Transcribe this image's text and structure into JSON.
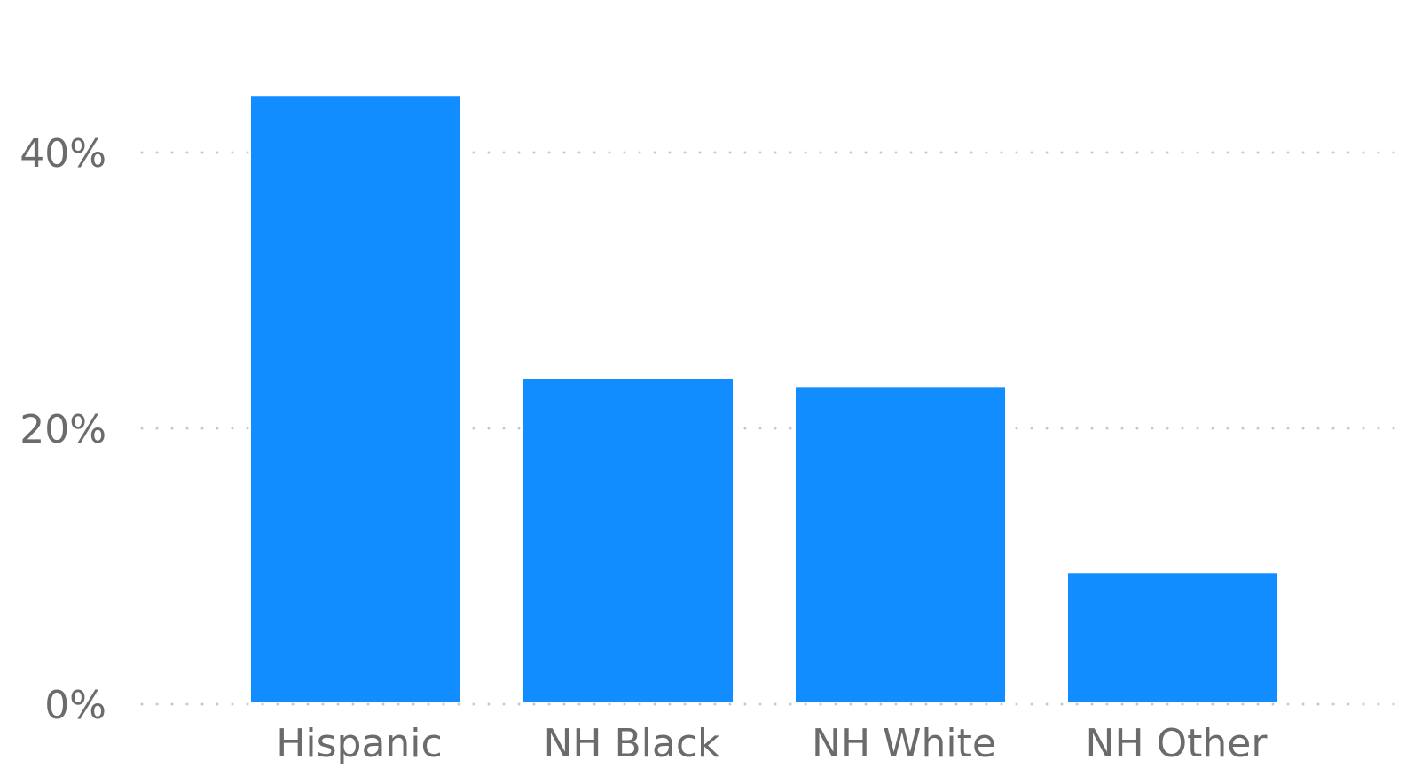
{
  "chart_data": {
    "type": "bar",
    "title": "",
    "xlabel": "",
    "ylabel": "",
    "categories": [
      "Hispanic",
      "NH Black",
      "NH White",
      "NH Other"
    ],
    "values": [
      44.1,
      23.6,
      23.0,
      9.5
    ],
    "ylim": [
      0,
      50
    ],
    "yticks": [
      0,
      20,
      40
    ],
    "ytick_labels": [
      "0%",
      "20%",
      "40%"
    ],
    "grid": true,
    "legend": "none",
    "bar_color": "#118DFF",
    "grid_color": "#C8C8C8",
    "label_color": "#6B6B6B"
  }
}
